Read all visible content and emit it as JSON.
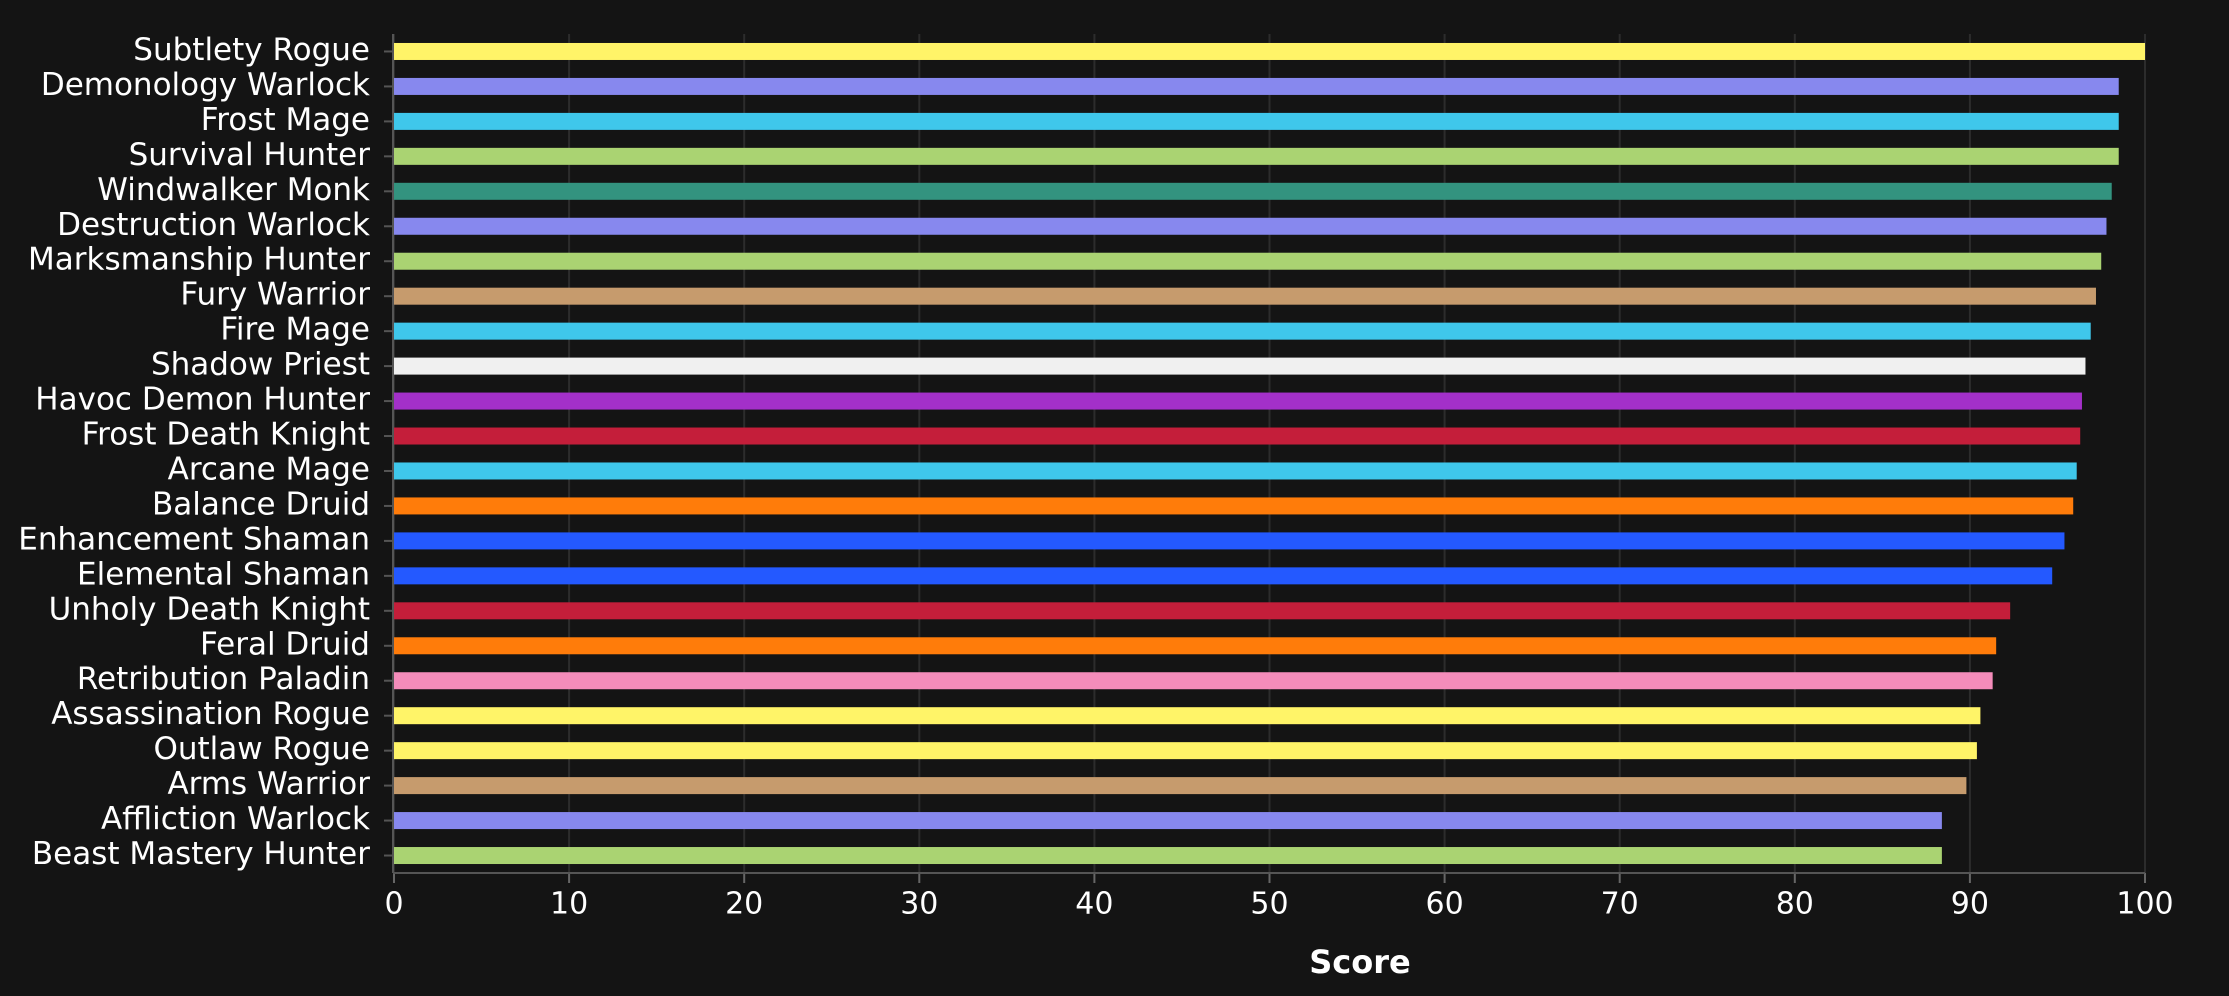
{
  "chart_data": {
    "type": "bar",
    "orientation": "horizontal",
    "xlabel": "Score",
    "categories": [
      "Subtlety Rogue",
      "Demonology Warlock",
      "Frost Mage",
      "Survival Hunter",
      "Windwalker Monk",
      "Destruction Warlock",
      "Marksmanship Hunter",
      "Fury Warrior",
      "Fire Mage",
      "Shadow Priest",
      "Havoc Demon Hunter",
      "Frost Death Knight",
      "Arcane Mage",
      "Balance Druid",
      "Enhancement Shaman",
      "Elemental Shaman",
      "Unholy Death Knight",
      "Feral Druid",
      "Retribution Paladin",
      "Assassination Rogue",
      "Outlaw Rogue",
      "Arms Warrior",
      "Affliction Warlock",
      "Beast Mastery Hunter"
    ],
    "values": [
      100,
      98.5,
      98.5,
      98.5,
      98.1,
      97.8,
      97.5,
      97.2,
      96.9,
      96.6,
      96.4,
      96.3,
      96.1,
      95.9,
      95.4,
      94.7,
      92.3,
      91.5,
      91.3,
      90.6,
      90.4,
      89.8,
      88.4,
      88.4
    ],
    "colors": [
      "#fff468",
      "#8788ee",
      "#3fc7eb",
      "#aad372",
      "#33937f",
      "#8788ee",
      "#aad372",
      "#c69b6d",
      "#3fc7eb",
      "#f0f0f0",
      "#a330c9",
      "#c41e3a",
      "#3fc7eb",
      "#ff7c0a",
      "#2459ff",
      "#2459ff",
      "#c41e3a",
      "#ff7c0a",
      "#f48cba",
      "#fff468",
      "#fff468",
      "#c69b6d",
      "#8788ee",
      "#aad372"
    ],
    "xlim": [
      0,
      100
    ],
    "xticks": [
      0,
      10,
      20,
      30,
      40,
      50,
      60,
      70,
      80,
      90,
      100
    ],
    "grid": true
  }
}
